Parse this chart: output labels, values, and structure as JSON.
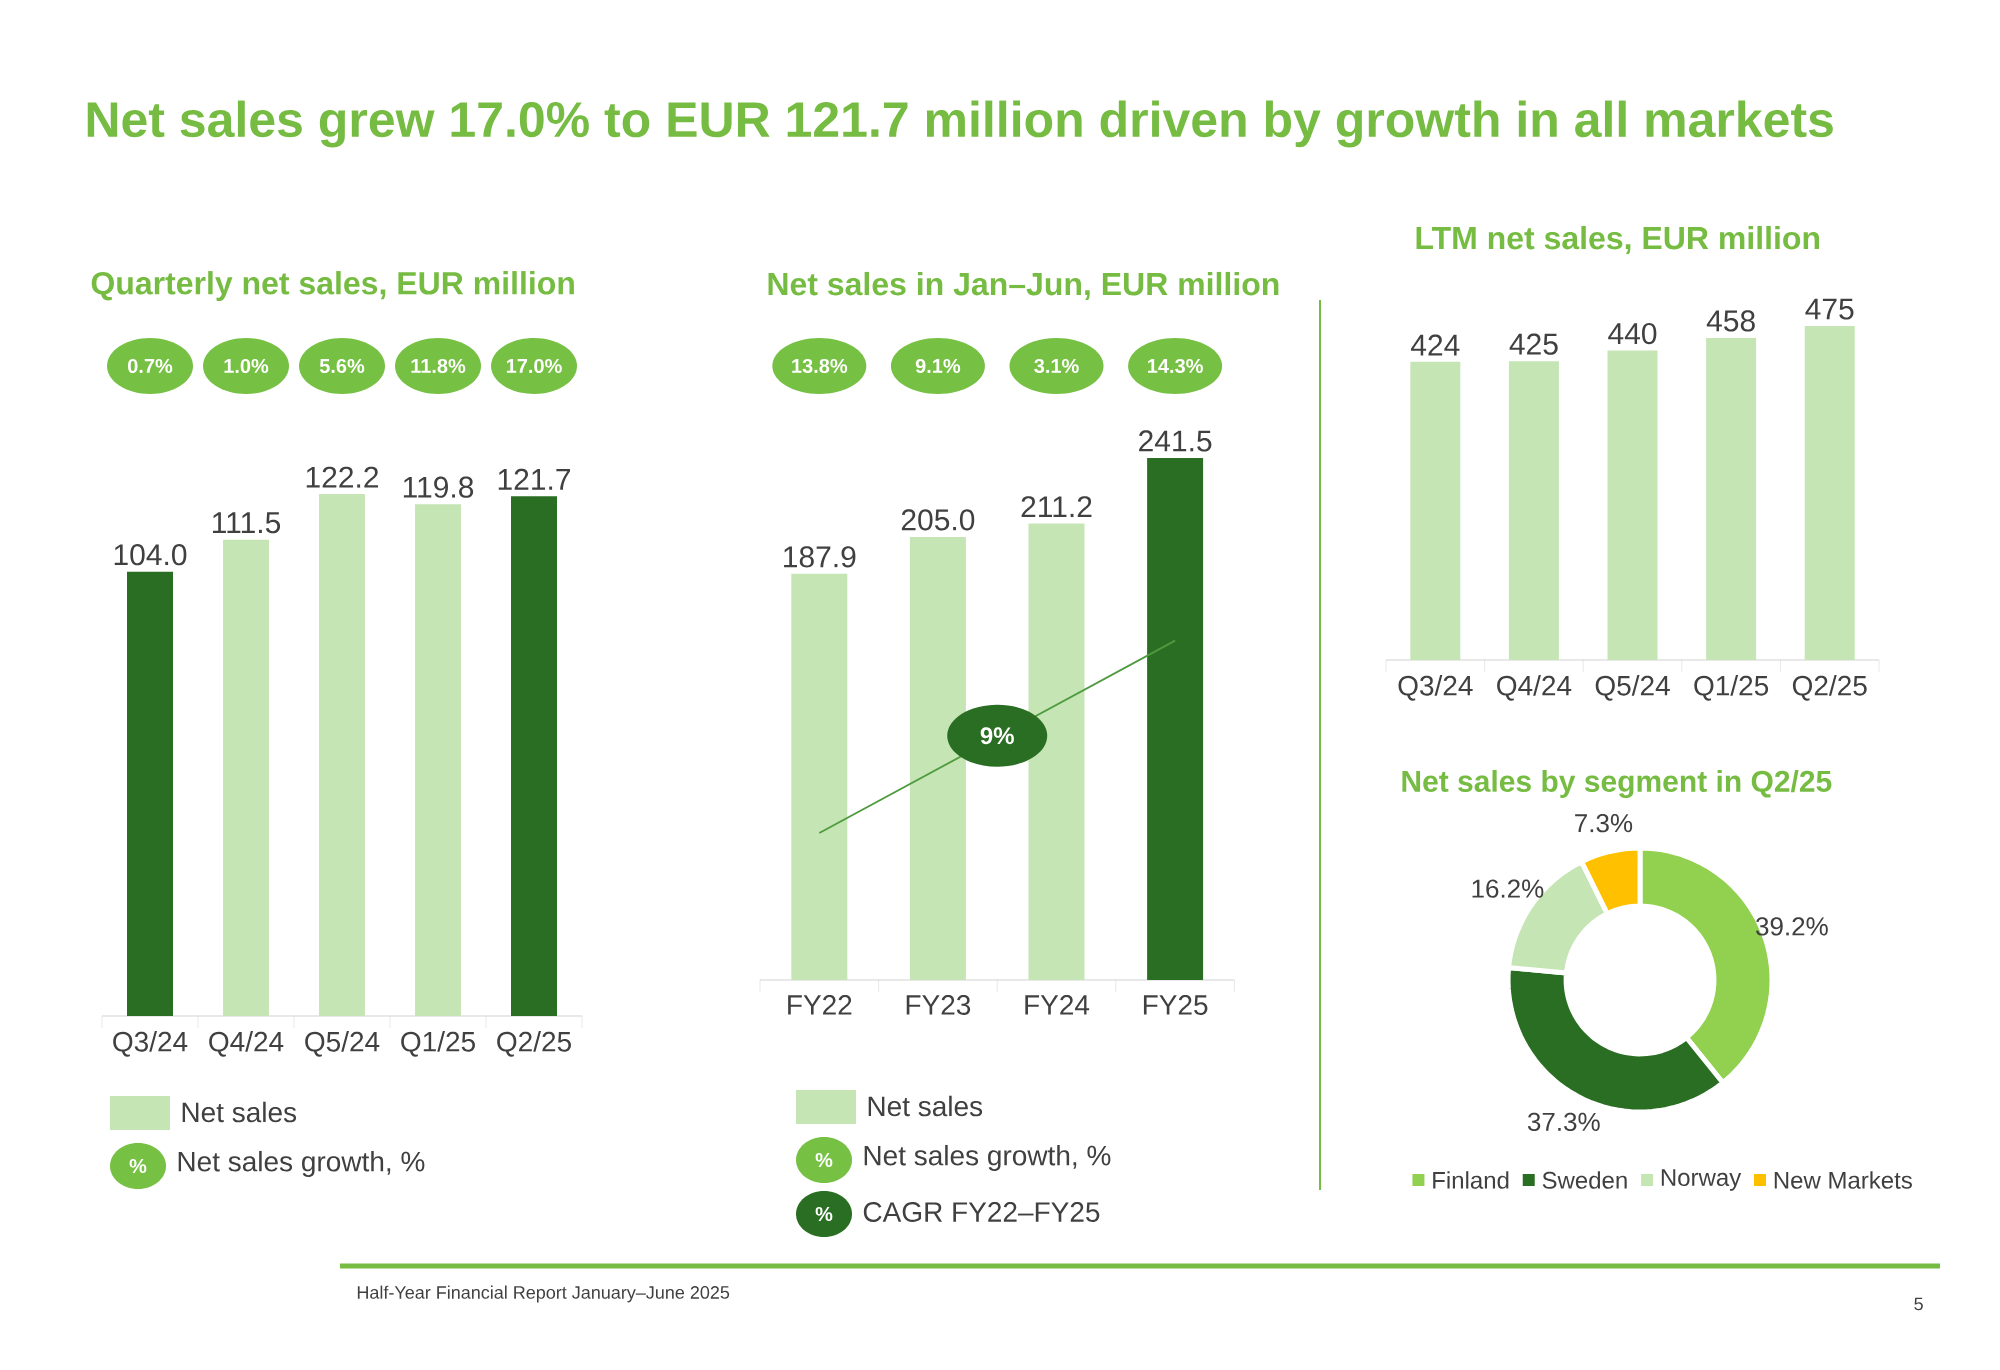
{
  "chart_data": [
    {
      "type": "other",
      "title": "Net sales grew 17.0% to EUR 121.7 million driven by growth in all markets",
      "annotations": [
        "Half-Year Financial Report January–June 2025",
        "5"
      ]
    },
    {
      "type": "bar",
      "title": "Quarterly net sales, EUR million",
      "categories": [
        "Q3/24",
        "Q4/24",
        "Q5/24",
        "Q1/25",
        "Q2/25"
      ],
      "series": [
        {
          "name": "Net sales",
          "color": "#c5e5b5",
          "colors": [
            "#2a6e23",
            "#c5e5b5",
            "#c5e5b5",
            "#c5e5b5",
            "#2a6e23"
          ],
          "values": [
            104.0,
            111.5,
            122.2,
            119.8,
            121.7
          ],
          "value_labels": [
            "104.0",
            "111.5",
            "122.2",
            "119.8",
            "121.7"
          ]
        }
      ],
      "legend": "bottom",
      "annotations": [
        "0.7%",
        "1.0%",
        "5.6%",
        "11.8%",
        "17.0%",
        "%",
        "Net sales growth, %"
      ]
    },
    {
      "type": "bar",
      "title": "Net sales in Jan–Jun, EUR million",
      "categories": [
        "FY22",
        "FY23",
        "FY24",
        "FY25"
      ],
      "series": [
        {
          "name": "Net sales",
          "color": "#c5e5b5",
          "colors": [
            "#c5e5b5",
            "#c5e5b5",
            "#c5e5b5",
            "#2a6e23"
          ],
          "values": [
            187.9,
            205.0,
            211.2,
            241.5
          ],
          "value_labels": [
            "187.9",
            "205.0",
            "211.2",
            "241.5"
          ]
        },
        {
          "type": "line",
          "color": "#4e9a3e",
          "x": [
            "FY22",
            "FY25"
          ],
          "values": [
            68,
            157
          ]
        }
      ],
      "legend": "bottom",
      "annotations": [
        "13.8%",
        "9.1%",
        "3.1%",
        "14.3%",
        {
          "text": "9%",
          "y": 113
        },
        "%",
        "Net sales growth, %",
        "%",
        "CAGR FY22–FY25"
      ]
    },
    {
      "type": "bar",
      "title": "LTM net sales, EUR million",
      "categories": [
        "Q3/24",
        "Q4/24",
        "Q5/24",
        "Q1/25",
        "Q2/25"
      ],
      "values": [
        424,
        425,
        440,
        458,
        475
      ],
      "value_labels": [
        "424",
        "425",
        "440",
        "458",
        "475"
      ],
      "color": "#c5e5b5"
    },
    {
      "type": "donut",
      "title": "Net sales by segment in Q2/25",
      "categories": [
        "Finland",
        "Sweden",
        "Norway",
        "New Markets"
      ],
      "values": [
        39.2,
        37.3,
        16.2,
        7.3
      ],
      "colors": [
        "#92d050",
        "#2a6e23",
        "#c5e5b5",
        "#ffc000"
      ],
      "value_labels": [
        "39.2%",
        "37.3%",
        "16.2%",
        "7.3%"
      ],
      "legend": "bottom"
    }
  ]
}
